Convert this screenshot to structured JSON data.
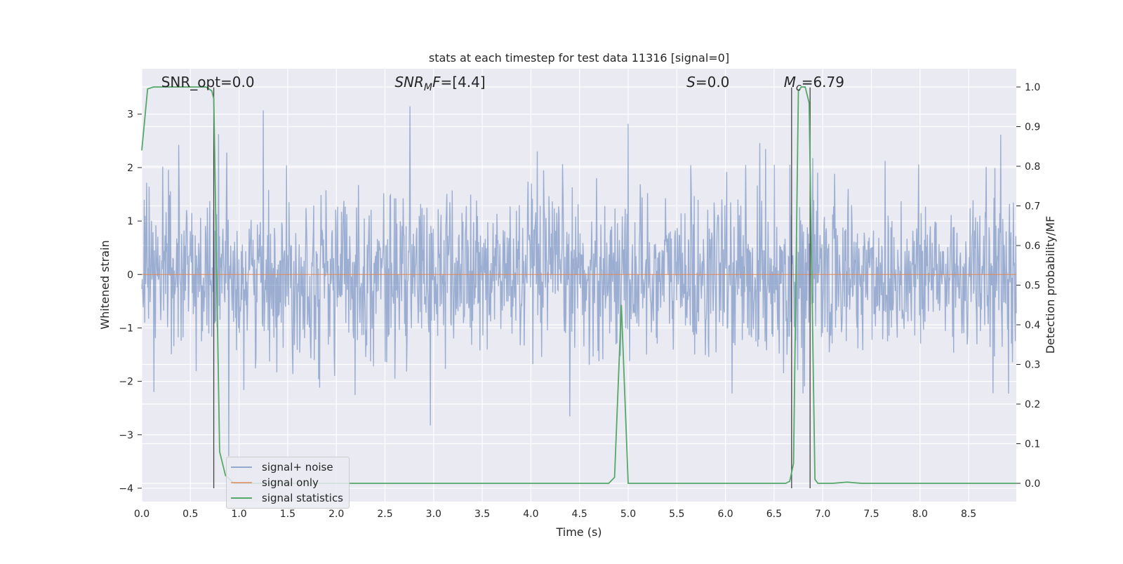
{
  "chart_data": {
    "type": "line",
    "title": "stats at each timestep for test data 11316 [signal=0]",
    "xlabel": "Time (s)",
    "ylabel_left": "Whitened strain",
    "ylabel_right": "Detection probability/MF",
    "xlim": [
      0.0,
      8.99
    ],
    "ylim_left": [
      -4.25,
      3.85
    ],
    "ylim_right": [
      -0.046,
      1.046
    ],
    "x_ticks": [
      "0.0",
      "0.5",
      "1.0",
      "1.5",
      "2.0",
      "2.5",
      "3.0",
      "3.5",
      "4.0",
      "4.5",
      "5.0",
      "5.5",
      "6.0",
      "6.5",
      "7.0",
      "7.5",
      "8.0",
      "8.5"
    ],
    "y_left_ticks": [
      "3",
      "2",
      "1",
      "0",
      "−1",
      "−2",
      "−3",
      "−4"
    ],
    "y_right_ticks": [
      "1.0",
      "0.9",
      "0.8",
      "0.7",
      "0.6",
      "0.5",
      "0.4",
      "0.3",
      "0.2",
      "0.1",
      "0.0"
    ],
    "grid": true,
    "legend_position": "lower-left",
    "annotations": [
      {
        "text": "SNR_opt=0.0",
        "x": 0.2
      },
      {
        "text": "SNR_MF=[4.4]",
        "x": 2.6
      },
      {
        "text": "S=0.0",
        "x": 5.6
      },
      {
        "text": "M_c=6.79",
        "x": 6.6
      }
    ],
    "series": [
      {
        "name": "signal+ noise",
        "color": "#4c72b0",
        "axis": "left",
        "description": "dense whitened noise trace, bulk amplitude approx ±1.7, spikes up to ~3.5 and down to ~-3.4",
        "bulk_amplitude": 1.7,
        "max": 3.5,
        "min": -3.4
      },
      {
        "name": "signal only",
        "color": "#dd8452",
        "axis": "left",
        "x": [
          0.0,
          8.99
        ],
        "y": [
          0.0,
          0.0
        ]
      },
      {
        "name": "signal statistics",
        "color": "#55a868",
        "axis": "right",
        "x": [
          0.0,
          0.06,
          0.12,
          0.3,
          0.5,
          0.66,
          0.72,
          0.74,
          0.8,
          0.86,
          0.95,
          1.5,
          2.0,
          3.0,
          4.0,
          4.5,
          4.8,
          4.86,
          4.93,
          5.0,
          5.06,
          6.0,
          6.5,
          6.62,
          6.66,
          6.7,
          6.75,
          6.78,
          6.82,
          6.86,
          6.92,
          6.95,
          7.1,
          7.25,
          7.4,
          8.0,
          8.99
        ],
        "y": [
          0.84,
          0.995,
          1.0,
          1.0,
          1.0,
          1.0,
          0.99,
          0.97,
          0.08,
          0.02,
          0.0,
          0.0,
          0.0,
          0.0,
          0.0,
          0.0,
          0.0,
          0.015,
          0.45,
          0.0,
          0.0,
          0.0,
          0.0,
          0.0,
          0.005,
          0.05,
          0.99,
          1.0,
          1.0,
          0.96,
          0.01,
          0.0,
          0.0,
          0.003,
          0.0,
          0.0,
          0.0
        ]
      }
    ],
    "vertical_markers": [
      {
        "x": 0.74,
        "y_left": [
          -4.0,
          3.5
        ]
      },
      {
        "x": 6.68,
        "y_left": [
          -4.0,
          3.5
        ]
      },
      {
        "x": 6.87,
        "y_left": [
          -4.0,
          3.5
        ]
      }
    ]
  },
  "legend": {
    "items": [
      {
        "label": "signal+ noise",
        "color": "#4c72b0"
      },
      {
        "label": "signal only",
        "color": "#dd8452"
      },
      {
        "label": "signal statistics",
        "color": "#55a868"
      }
    ]
  }
}
